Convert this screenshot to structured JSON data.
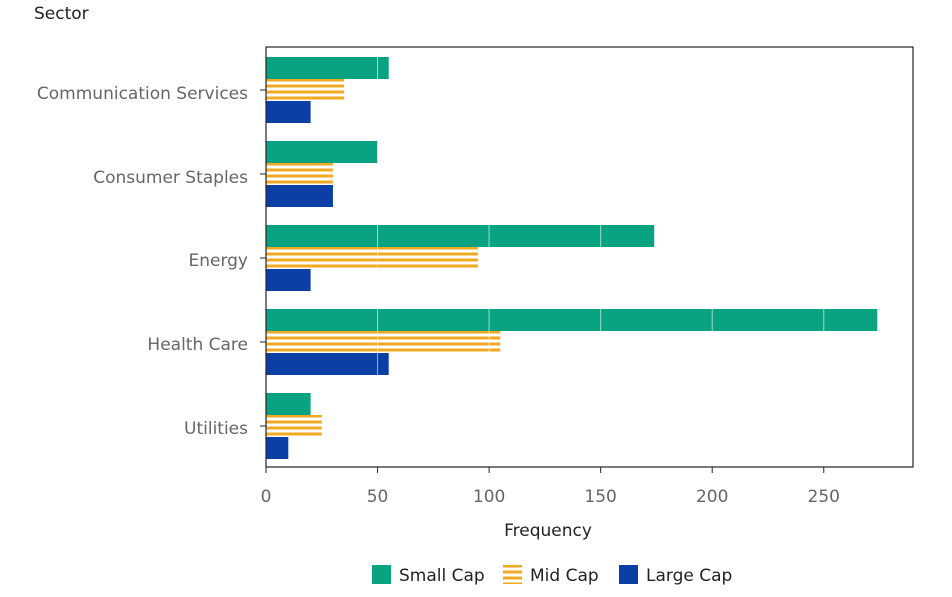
{
  "chart_data": {
    "type": "bar",
    "orientation": "horizontal",
    "ylabel": "Sector",
    "xlabel": "Frequency",
    "categories": [
      "Communication Services",
      "Consumer Staples",
      "Energy",
      "Health Care",
      "Utilities"
    ],
    "series": [
      {
        "name": "Small Cap",
        "values": [
          55,
          50,
          174,
          274,
          20
        ],
        "color": "#0aa382",
        "pattern": "solid"
      },
      {
        "name": "Mid Cap",
        "values": [
          35,
          30,
          95,
          105,
          25
        ],
        "color": "#f2a922",
        "pattern": "horizontal-stripes"
      },
      {
        "name": "Large Cap",
        "values": [
          20,
          30,
          20,
          55,
          10
        ],
        "color": "#0b3fa6",
        "pattern": "solid"
      }
    ],
    "xlim": [
      0,
      290
    ],
    "xticks": [
      "0",
      "50",
      "100",
      "150",
      "200",
      "250"
    ],
    "xtick_values": [
      0,
      50,
      100,
      150,
      200,
      250
    ],
    "grid": "x-major-white-over-bars",
    "legend_position": "bottom-center"
  }
}
